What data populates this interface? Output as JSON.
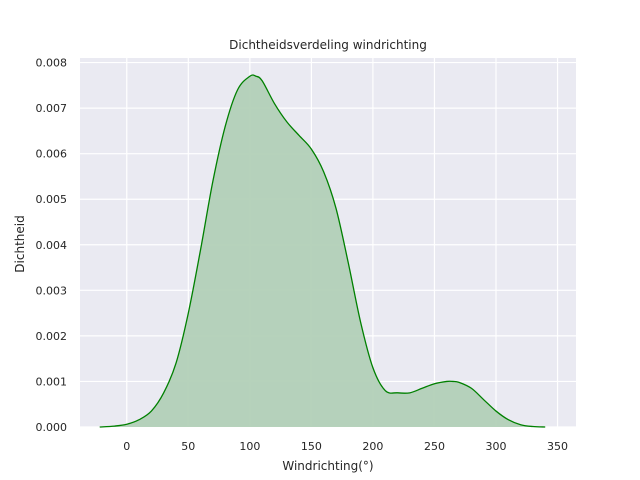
{
  "chart_data": {
    "type": "area",
    "title": "Dichtheidsverdeling windrichting",
    "xlabel": "Windrichting(°)",
    "ylabel": "Dichtheid",
    "xlim": [
      -38,
      365
    ],
    "ylim": [
      0,
      0.0081
    ],
    "xticks": [
      0,
      50,
      100,
      150,
      200,
      250,
      300,
      350
    ],
    "xtick_labels": [
      "0",
      "50",
      "100",
      "150",
      "200",
      "250",
      "300",
      "350"
    ],
    "yticks": [
      0,
      0.001,
      0.002,
      0.003,
      0.004,
      0.005,
      0.006,
      0.007,
      0.008
    ],
    "ytick_labels": [
      "0.000",
      "0.001",
      "0.002",
      "0.003",
      "0.004",
      "0.005",
      "0.006",
      "0.007",
      "0.008"
    ],
    "grid": true,
    "series": [
      {
        "color": "#008000",
        "fill_color": "#b2d0b7",
        "x": [
          -22,
          -10,
          0,
          10,
          20,
          30,
          40,
          50,
          60,
          70,
          80,
          90,
          100,
          105,
          110,
          120,
          130,
          140,
          150,
          160,
          170,
          180,
          190,
          200,
          210,
          220,
          230,
          240,
          250,
          260,
          265,
          270,
          280,
          290,
          300,
          310,
          320,
          330,
          340
        ],
        "y": [
          0.0,
          2e-05,
          6e-05,
          0.00016,
          0.00035,
          0.00075,
          0.0014,
          0.0025,
          0.0039,
          0.0054,
          0.0066,
          0.0074,
          0.0077,
          0.0077,
          0.0076,
          0.0071,
          0.0067,
          0.0064,
          0.0061,
          0.0056,
          0.0048,
          0.0036,
          0.0023,
          0.0013,
          0.0008,
          0.00075,
          0.00075,
          0.00085,
          0.00095,
          0.001,
          0.001,
          0.00098,
          0.00085,
          0.0006,
          0.00035,
          0.00016,
          5e-05,
          1e-05,
          0.0
        ]
      }
    ]
  }
}
